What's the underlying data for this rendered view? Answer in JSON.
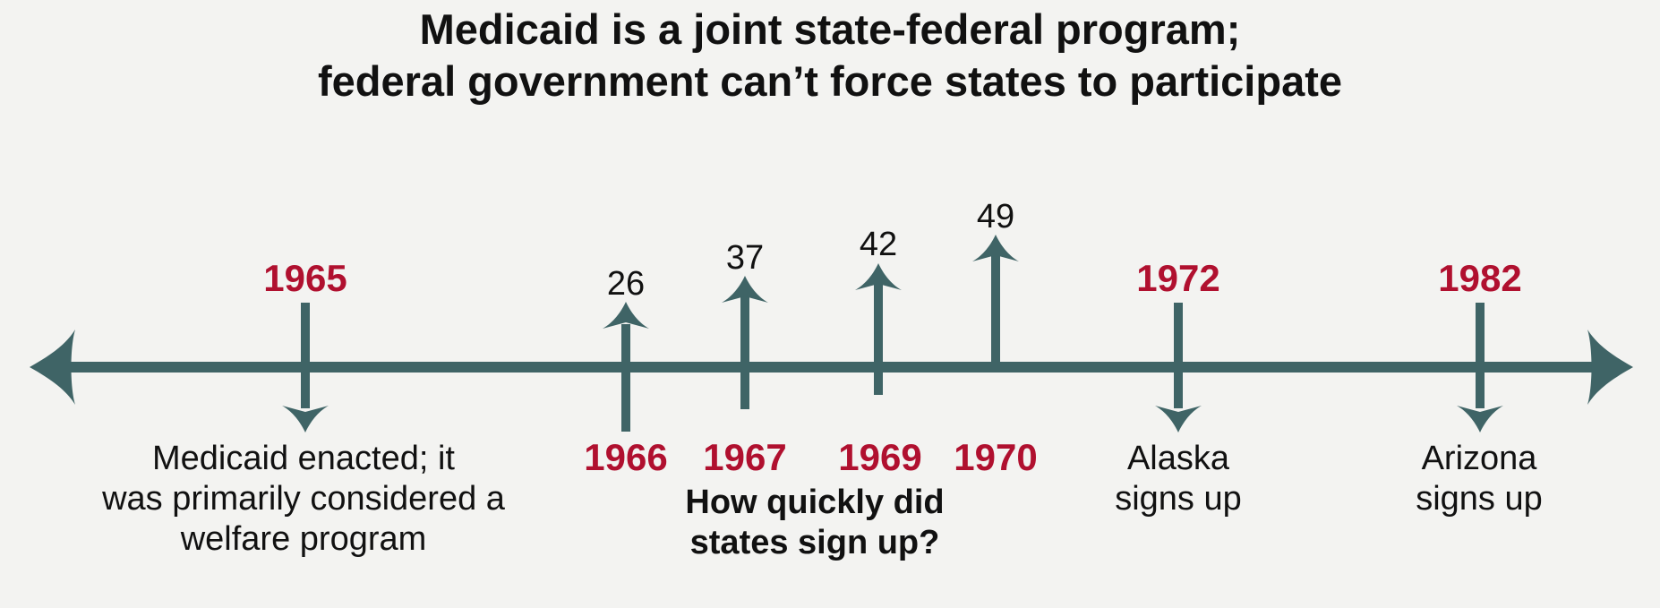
{
  "title": {
    "line1": "Medicaid is a joint state-federal program;",
    "line2": "federal government can’t force states to participate"
  },
  "colors": {
    "axis": "#3f6466",
    "year": "#b0102f",
    "text": "#111111",
    "background": "#f3f3f1"
  },
  "events": {
    "e1965": {
      "year": "1965",
      "desc_line1": "Medicaid enacted; it",
      "desc_line2": "was primarily considered a",
      "desc_line3": "welfare program"
    },
    "e1966": {
      "year": "1966",
      "count": "26"
    },
    "e1967": {
      "year": "1967",
      "count": "37"
    },
    "e1969": {
      "year": "1969",
      "count": "42"
    },
    "e1970": {
      "year": "1970",
      "count": "49"
    },
    "e1972": {
      "year": "1972",
      "desc_line1": "Alaska",
      "desc_line2": "signs up"
    },
    "e1982": {
      "year": "1982",
      "desc_line1": "Arizona",
      "desc_line2": "signs up"
    }
  },
  "question": {
    "line1": "How quickly did",
    "line2": "states sign up?"
  }
}
